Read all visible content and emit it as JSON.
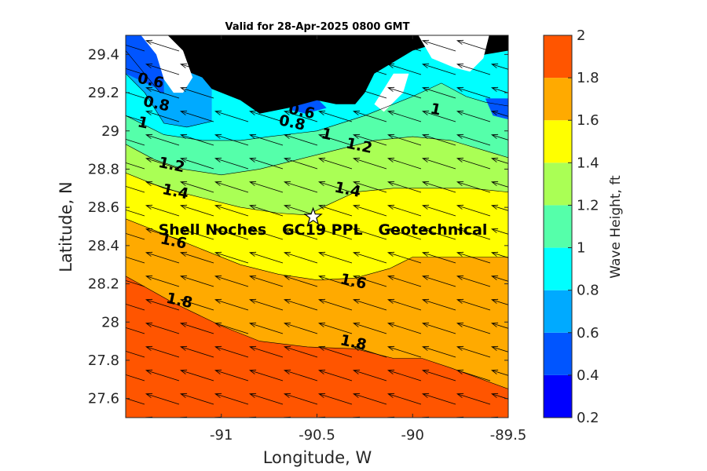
{
  "chart_data": {
    "type": "heatmap",
    "title": "Valid for 28-Apr-2025 0800 GMT",
    "xlabel": "Longitude, W",
    "ylabel": "Latitude, N",
    "xlim": [
      -91.5,
      -89.5
    ],
    "ylim": [
      27.5,
      29.5
    ],
    "x_ticks": [
      -91,
      -90.5,
      -90,
      -89.5
    ],
    "x_tick_labels": [
      "-91",
      "-90.5",
      "-90",
      "-89.5"
    ],
    "y_ticks": [
      27.6,
      27.8,
      28,
      28.2,
      28.4,
      28.6,
      28.8,
      29,
      29.2,
      29.4
    ],
    "y_tick_labels": [
      "27.6",
      "27.8",
      "28",
      "28.2",
      "28.4",
      "28.6",
      "28.8",
      "29",
      "29.2",
      "29.4"
    ],
    "colorbar": {
      "label": "Wave Height, ft",
      "levels": [
        0.2,
        0.4,
        0.6,
        0.8,
        1.0,
        1.2,
        1.4,
        1.6,
        1.8,
        2.0
      ],
      "tick_labels": [
        "0.2",
        "0.4",
        "0.6",
        "0.8",
        "1",
        "1.2",
        "1.4",
        "1.6",
        "1.8",
        "2"
      ],
      "colors": [
        "#0000ff",
        "#0055ff",
        "#00aaff",
        "#00ffff",
        "#55ffaa",
        "#aaff55",
        "#ffff00",
        "#ffaa00",
        "#ff5500"
      ]
    },
    "contours": [
      {
        "level": 0.6,
        "label": "0.6",
        "points": [
          [
            -91.5,
            29.42
          ],
          [
            -91.32,
            29.2
          ],
          [
            -91.3,
            29.2
          ]
        ]
      },
      {
        "level": 0.8,
        "label": "0.8",
        "points": [
          [
            -91.5,
            29.3
          ],
          [
            -91.4,
            29.2
          ],
          [
            -91.3,
            29.04
          ],
          [
            -91.18,
            29.02
          ],
          [
            -91.05,
            29.05
          ]
        ]
      },
      {
        "level": 1.0,
        "label": "1",
        "points": [
          [
            -91.5,
            29.08
          ],
          [
            -91.3,
            28.98
          ],
          [
            -91.1,
            28.95
          ],
          [
            -90.9,
            28.95
          ],
          [
            -90.75,
            28.97
          ],
          [
            -90.5,
            29.0
          ],
          [
            -90.25,
            29.08
          ],
          [
            -90.0,
            29.18
          ],
          [
            -89.85,
            29.25
          ],
          [
            -89.72,
            29.18
          ],
          [
            -89.62,
            29.15
          ],
          [
            -89.5,
            29.13
          ]
        ]
      },
      {
        "level": 1.2,
        "label": "1.2",
        "points": [
          [
            -91.5,
            28.93
          ],
          [
            -91.35,
            28.85
          ],
          [
            -91.2,
            28.8
          ],
          [
            -91.0,
            28.77
          ],
          [
            -90.8,
            28.8
          ],
          [
            -90.6,
            28.85
          ],
          [
            -90.4,
            28.9
          ],
          [
            -90.2,
            28.95
          ],
          [
            -90.0,
            28.97
          ],
          [
            -89.8,
            28.95
          ],
          [
            -89.5,
            28.86
          ]
        ]
      },
      {
        "level": 1.4,
        "label": "1.4",
        "points": [
          [
            -91.5,
            28.78
          ],
          [
            -91.3,
            28.7
          ],
          [
            -91.1,
            28.65
          ],
          [
            -90.9,
            28.6
          ],
          [
            -90.7,
            28.57
          ],
          [
            -90.55,
            28.56
          ],
          [
            -90.45,
            28.61
          ],
          [
            -90.3,
            28.68
          ],
          [
            -90.1,
            28.7
          ],
          [
            -89.9,
            28.7
          ],
          [
            -89.7,
            28.7
          ],
          [
            -89.5,
            28.68
          ]
        ]
      },
      {
        "level": 1.6,
        "label": "1.6",
        "points": [
          [
            -91.5,
            28.54
          ],
          [
            -91.3,
            28.46
          ],
          [
            -91.1,
            28.38
          ],
          [
            -90.9,
            28.3
          ],
          [
            -90.7,
            28.25
          ],
          [
            -90.5,
            28.22
          ],
          [
            -90.3,
            28.23
          ],
          [
            -90.12,
            28.28
          ],
          [
            -90.0,
            28.34
          ],
          [
            -89.8,
            28.34
          ],
          [
            -89.5,
            28.34
          ]
        ]
      },
      {
        "level": 1.8,
        "label": "1.8",
        "points": [
          [
            -91.5,
            28.24
          ],
          [
            -91.25,
            28.1
          ],
          [
            -91.0,
            27.98
          ],
          [
            -90.8,
            27.9
          ],
          [
            -90.55,
            27.87
          ],
          [
            -90.3,
            27.86
          ],
          [
            -90.1,
            27.81
          ],
          [
            -89.95,
            27.81
          ],
          [
            -89.8,
            27.76
          ],
          [
            -89.5,
            27.65
          ]
        ]
      }
    ],
    "contour_labels": [
      {
        "text": "0.6",
        "lon": -91.37,
        "lat": 29.26
      },
      {
        "text": "0.8",
        "lon": -91.34,
        "lat": 29.14
      },
      {
        "text": "1",
        "lon": -91.41,
        "lat": 29.04
      },
      {
        "text": "1.2",
        "lon": -91.26,
        "lat": 28.82
      },
      {
        "text": "1.4",
        "lon": -91.24,
        "lat": 28.68
      },
      {
        "text": "1.6",
        "lon": -91.25,
        "lat": 28.42
      },
      {
        "text": "1.8",
        "lon": -91.22,
        "lat": 28.11
      },
      {
        "text": "0.6",
        "lon": -90.58,
        "lat": 29.1
      },
      {
        "text": "0.8",
        "lon": -90.63,
        "lat": 29.04
      },
      {
        "text": "1",
        "lon": -90.45,
        "lat": 28.98
      },
      {
        "text": "1.2",
        "lon": -90.28,
        "lat": 28.92
      },
      {
        "text": "1.4",
        "lon": -90.34,
        "lat": 28.69
      },
      {
        "text": "1.6",
        "lon": -90.31,
        "lat": 28.21
      },
      {
        "text": "1.8",
        "lon": -90.31,
        "lat": 27.89
      },
      {
        "text": "1",
        "lon": -89.88,
        "lat": 29.11
      }
    ],
    "site": {
      "name": "Shell Noches   GC19 PPL   Geotechnical",
      "lon": -90.52,
      "lat": 28.55,
      "marker": "star"
    },
    "wave_direction": "toward west-northwest (arrows)",
    "land_color": "#000000",
    "grid": false
  }
}
